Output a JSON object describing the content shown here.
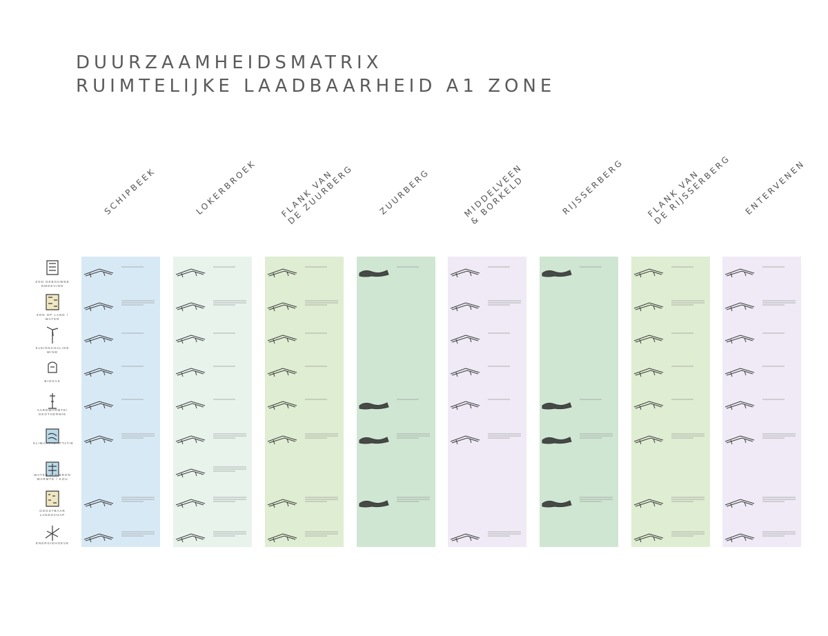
{
  "title": {
    "line1": "DUURZAAMHEIDSMATRIX",
    "line2": "RUIMTELIJKE LAADBAARHEID A1 ZONE"
  },
  "colors": {
    "blue": "#d8e9f6",
    "mint": "#e8f3ec",
    "lime": "#dfedd2",
    "green": "#cfe6d2",
    "lavender": "#efeaf5",
    "title": "#5a5a5a",
    "sketch": "#3a3a3a"
  },
  "columns": [
    {
      "label": "SCHIPBEEK",
      "color": "blue"
    },
    {
      "label": "LOKERBROEK",
      "color": "mint"
    },
    {
      "label": "FLANK VAN\nDE ZUURBERG",
      "color": "lime"
    },
    {
      "label": "ZUURBERG",
      "color": "green"
    },
    {
      "label": "MIDDELVEEN\n& BORKELD",
      "color": "lavender"
    },
    {
      "label": "RIJSSERBERG",
      "color": "green"
    },
    {
      "label": "FLANK VAN\nDE RIJSSERBERG",
      "color": "lime"
    },
    {
      "label": "ENTERVENEN",
      "color": "lavender"
    }
  ],
  "rows": [
    {
      "label": "ZON GEBOUWDE\nOMGEVING",
      "icon": "solar-roof-icon"
    },
    {
      "label": "ZON OP LAND /\nWATER",
      "icon": "solar-field-icon"
    },
    {
      "label": "KLEINSCHALIGE WIND",
      "icon": "wind-turbine-icon"
    },
    {
      "label": "BIOGAS",
      "icon": "biogas-icon"
    },
    {
      "label": "AARDWARMTE/\nGEOTHERMIE",
      "icon": "geothermal-icon"
    },
    {
      "label": "KLIMAATADAPTATIE",
      "icon": "climate-adaptation-icon"
    },
    {
      "label": "WATER ALS BRON\nWARMTE / KOU",
      "icon": "water-source-icon"
    },
    {
      "label": "OOGSTBAAR LANDSCHAP",
      "icon": "harvest-landscape-icon"
    },
    {
      "label": "ENERGIEHOEVE",
      "icon": "energy-farm-icon"
    }
  ]
}
